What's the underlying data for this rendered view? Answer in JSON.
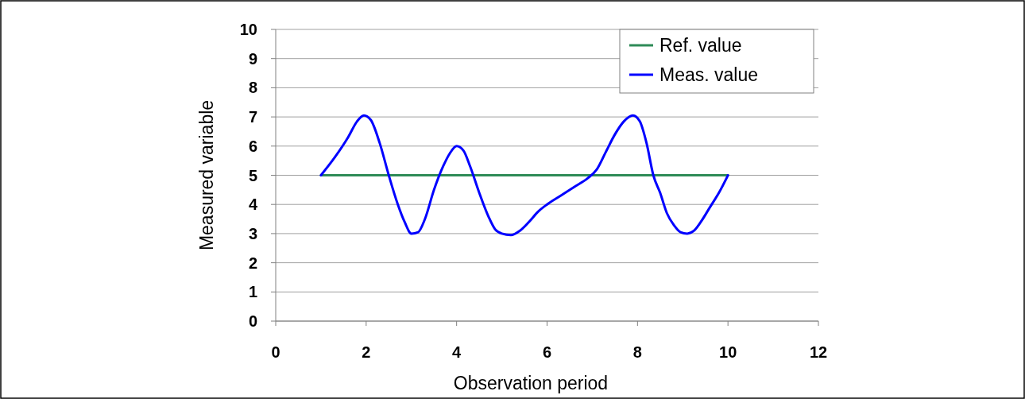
{
  "chart_data": {
    "type": "line",
    "xlabel": "Observation period",
    "ylabel": "Measured variable",
    "xlim": [
      0,
      12
    ],
    "xticks": [
      0,
      2,
      4,
      6,
      8,
      10,
      12
    ],
    "ylim": [
      0,
      10
    ],
    "yticks": [
      0,
      1,
      2,
      3,
      4,
      5,
      6,
      7,
      8,
      9,
      10
    ],
    "grid": "y",
    "legend": "top right",
    "marker": "none",
    "line_style": "solid",
    "series": [
      {
        "name": "Ref. value",
        "color": "#2e8b57",
        "x": [
          1,
          10
        ],
        "values": [
          5,
          5
        ]
      },
      {
        "name": "Meas. value",
        "color": "#0000ff",
        "x": [
          1,
          1.3,
          1.6,
          1.8,
          1.95,
          2.1,
          2.3,
          2.5,
          2.7,
          2.85,
          3,
          3.15,
          3.3,
          3.5,
          3.7,
          3.85,
          4,
          4.15,
          4.3,
          4.5,
          4.7,
          4.85,
          5,
          5.2,
          5.4,
          5.6,
          5.8,
          6,
          6.3,
          6.6,
          6.9,
          7.1,
          7.3,
          7.5,
          7.7,
          7.9,
          8.05,
          8.2,
          8.35,
          8.5,
          8.65,
          8.8,
          8.95,
          9.1,
          9.25,
          9.4,
          9.6,
          9.8,
          10
        ],
        "values": [
          5,
          5.6,
          6.3,
          6.85,
          7.05,
          6.9,
          6.1,
          5,
          4,
          3.4,
          3,
          3.05,
          3.5,
          4.5,
          5.3,
          5.75,
          6,
          5.85,
          5.3,
          4.4,
          3.6,
          3.15,
          3,
          2.95,
          3.1,
          3.4,
          3.75,
          4,
          4.3,
          4.6,
          4.9,
          5.2,
          5.8,
          6.4,
          6.85,
          7.05,
          6.85,
          6.1,
          5,
          4.4,
          3.7,
          3.3,
          3.05,
          3,
          3.1,
          3.4,
          3.9,
          4.4,
          5
        ]
      }
    ]
  }
}
